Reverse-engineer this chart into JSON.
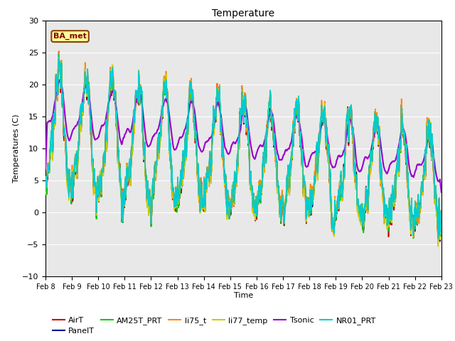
{
  "title": "Temperature",
  "xlabel": "Time",
  "ylabel": "Temperatures (C)",
  "ylim": [
    -10,
    30
  ],
  "yticks": [
    -10,
    -5,
    0,
    5,
    10,
    15,
    20,
    25,
    30
  ],
  "x_labels": [
    "Feb 8",
    "Feb 9",
    "Feb 10",
    "Feb 11",
    "Feb 12",
    "Feb 13",
    "Feb 14",
    "Feb 15",
    "Feb 16",
    "Feb 17",
    "Feb 18",
    "Feb 19",
    "Feb 20",
    "Feb 21",
    "Feb 22",
    "Feb 23"
  ],
  "series_names": [
    "AirT",
    "PanelT",
    "AM25T_PRT",
    "li75_t",
    "li77_temp",
    "Tsonic",
    "NR01_PRT"
  ],
  "series_colors": [
    "#cc0000",
    "#000099",
    "#00cc00",
    "#ff8800",
    "#cccc00",
    "#9900cc",
    "#00cccc"
  ],
  "series_lw": [
    1.2,
    1.2,
    1.2,
    1.2,
    1.2,
    1.5,
    1.2
  ],
  "annotation_text": "BA_met",
  "ann_facecolor": "#ffff99",
  "ann_edgecolor": "#884400",
  "ann_textcolor": "#880000",
  "bg_color": "#e8e8e8",
  "fig_bg": "#ffffff",
  "grid_color": "#ffffff",
  "n_points": 1440,
  "seed": 7
}
